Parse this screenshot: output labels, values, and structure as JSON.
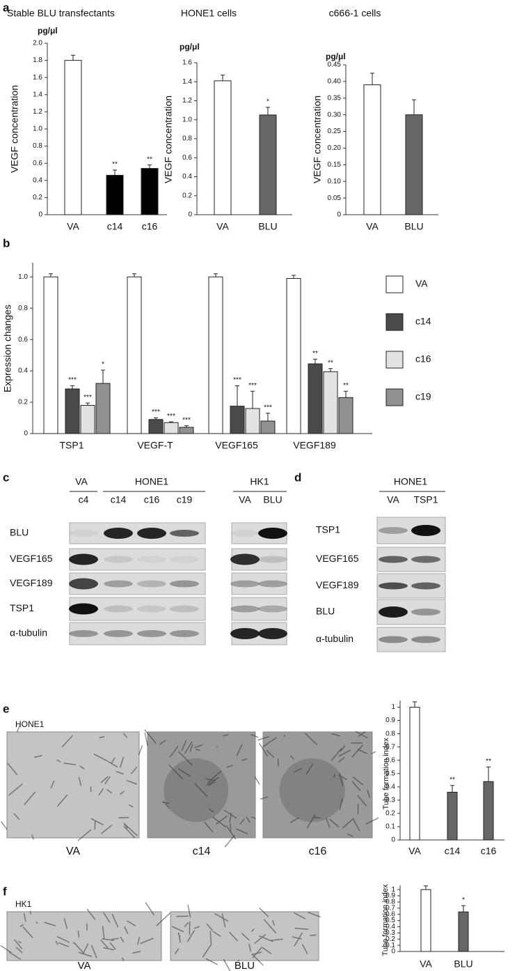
{
  "panel_letters": [
    "a",
    "b",
    "c",
    "d",
    "e",
    "f"
  ],
  "chart_data": [
    {
      "type": "bar",
      "title": "Stable BLU transfectants",
      "unit": "pg/μl",
      "y_label": "VEGF  concentration",
      "categories": [
        "VA",
        "c14",
        "c16"
      ],
      "values": [
        1.8,
        0.46,
        0.54
      ],
      "errors": [
        0.06,
        0.06,
        0.04
      ],
      "significance": [
        null,
        "**",
        "**"
      ],
      "colors": [
        "#ffffff",
        "#000000",
        "#000000"
      ],
      "ylim": [
        0,
        2
      ],
      "yticks": [
        0,
        0.2,
        0.4,
        0.6,
        0.8,
        {
          "value": 1,
          "label": "1.0"
        },
        1.2,
        1.4,
        1.6,
        1.8,
        {
          "value": 2,
          "label": "2.0"
        }
      ]
    },
    {
      "type": "bar",
      "title": "HONE1 cells",
      "unit": "pg/μl",
      "y_label": "VEGF  concentration",
      "categories": [
        "VA",
        "BLU"
      ],
      "values": [
        1.41,
        1.05
      ],
      "errors": [
        0.06,
        0.08
      ],
      "significance": [
        null,
        "*"
      ],
      "colors": [
        "#ffffff",
        "#666666"
      ],
      "ylim": [
        0,
        1.6
      ],
      "yticks": [
        0,
        0.2,
        0.4,
        0.6,
        0.8,
        {
          "value": 1,
          "label": "1.0"
        },
        1.2,
        1.4,
        1.6
      ]
    },
    {
      "type": "bar",
      "title": "c666-1 cells",
      "unit": "pg/μl",
      "y_label": "VEGF  concentration",
      "categories": [
        "VA",
        "BLU"
      ],
      "values": [
        0.39,
        0.3
      ],
      "errors": [
        0.035,
        0.045
      ],
      "significance": [
        null,
        null
      ],
      "colors": [
        "#ffffff",
        "#666666"
      ],
      "ylim": [
        0,
        0.45
      ],
      "yticks": [
        0,
        0.05,
        {
          "value": 0.1,
          "label": "0.10"
        },
        0.15,
        {
          "value": 0.2,
          "label": "0.20"
        },
        0.25,
        {
          "value": 0.3,
          "label": "0.30"
        },
        0.35,
        {
          "value": 0.4,
          "label": "0.40"
        },
        0.45
      ]
    },
    {
      "type": "bar",
      "y_label": "Expression changes",
      "categories": [
        "TSP1",
        "VEGF-T",
        "VEGF165",
        "VEGF189"
      ],
      "legend": "right",
      "ylim": [
        0,
        1.09
      ],
      "yticks": [
        0,
        0.2,
        0.4,
        0.6,
        0.8,
        {
          "value": 1,
          "label": "1.0"
        }
      ],
      "series": [
        {
          "name": "VA",
          "color": "#ffffff",
          "values": [
            1,
            1,
            1,
            0.99
          ],
          "errors": [
            0.02,
            0.02,
            0.02,
            0.02
          ]
        },
        {
          "name": "c14",
          "color": "#4a4a4a",
          "values": [
            0.285,
            0.09,
            0.175,
            0.445
          ],
          "errors": [
            0.02,
            0.01,
            0.13,
            0.03
          ],
          "significance": [
            "***",
            "***",
            "***",
            "**"
          ]
        },
        {
          "name": "c16",
          "color": "#e2e2e2",
          "values": [
            0.18,
            0.07,
            0.16,
            0.395
          ],
          "errors": [
            0.015,
            0.005,
            0.11,
            0.02
          ],
          "significance": [
            "***",
            "***",
            "***",
            "**"
          ]
        },
        {
          "name": "c19",
          "color": "#909090",
          "values": [
            0.32,
            0.04,
            0.08,
            0.23
          ],
          "errors": [
            0.085,
            0.01,
            0.05,
            0.04
          ],
          "significance": [
            "*",
            "***",
            "***",
            "**"
          ]
        }
      ]
    },
    {
      "type": "bar",
      "y_label": "Tube formation index",
      "categories": [
        "VA",
        "c14",
        "c16"
      ],
      "values": [
        1,
        0.36,
        0.44
      ],
      "errors": [
        0.04,
        0.05,
        0.11
      ],
      "significance": [
        null,
        "**",
        "**"
      ],
      "colors": [
        "#ffffff",
        "#666666",
        "#666666"
      ],
      "ylim": [
        0,
        1.05
      ],
      "yticks": [
        0,
        0.1,
        0.2,
        0.3,
        0.4,
        0.5,
        0.6,
        0.7,
        0.8,
        0.9,
        1
      ]
    },
    {
      "type": "bar",
      "y_label": "Tube formation index",
      "categories": [
        "VA",
        "BLU"
      ],
      "values": [
        1,
        0.64
      ],
      "errors": [
        0.06,
        0.1
      ],
      "significance": [
        null,
        "*"
      ],
      "colors": [
        "#ffffff",
        "#666666"
      ],
      "ylim": [
        0,
        1.07
      ],
      "yticks": [
        0,
        0.1,
        0.2,
        0.3,
        0.4,
        0.5,
        0.6,
        0.7,
        0.8,
        0.9,
        1
      ]
    }
  ],
  "blots": {
    "c": {
      "groups": [
        {
          "label": "VA",
          "lanes": [
            "c4"
          ]
        },
        {
          "label": "HONE1",
          "lanes": [
            "c14",
            "c16",
            "c19"
          ]
        }
      ],
      "rows": [
        "BLU",
        "VEGF165",
        "VEGF189",
        "TSP1",
        "α-tubulin"
      ]
    },
    "hk1": {
      "label": "HK1",
      "lanes": [
        "VA",
        "BLU"
      ]
    },
    "d": {
      "label": "HONE1",
      "lanes": [
        "VA",
        "TSP1"
      ],
      "rows": [
        "TSP1",
        "VEGF165",
        "VEGF189",
        "BLU",
        "α-tubulin"
      ]
    }
  },
  "micrographs": {
    "e": {
      "cell_line": "HONE1",
      "labels": [
        "VA",
        "c14",
        "c16"
      ]
    },
    "f": {
      "cell_line": "HK1",
      "labels": [
        "VA",
        "BLU"
      ]
    }
  }
}
